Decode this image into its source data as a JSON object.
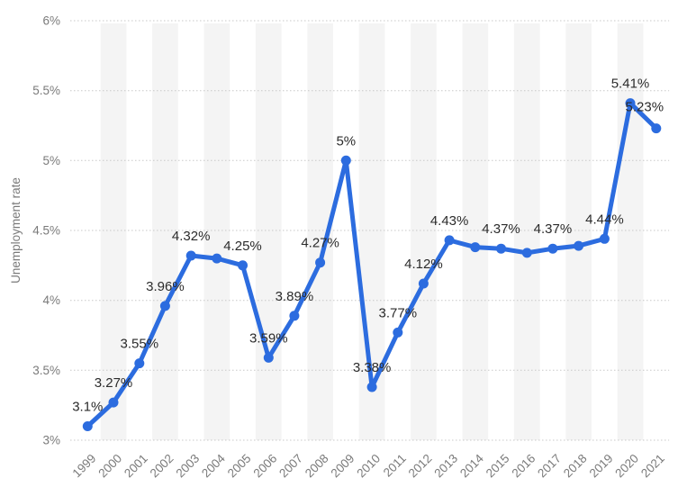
{
  "chart_data": {
    "type": "line",
    "title": "",
    "xlabel": "",
    "ylabel": "Unemployment rate",
    "x": [
      1999,
      2000,
      2001,
      2002,
      2003,
      2004,
      2005,
      2006,
      2007,
      2008,
      2009,
      2010,
      2011,
      2012,
      2013,
      2014,
      2015,
      2016,
      2017,
      2018,
      2019,
      2020,
      2021
    ],
    "series": [
      {
        "name": "Unemployment rate",
        "values": [
          3.1,
          3.27,
          3.55,
          3.96,
          4.32,
          4.3,
          4.25,
          3.59,
          3.89,
          4.27,
          5,
          3.38,
          3.77,
          4.12,
          4.43,
          4.38,
          4.37,
          4.34,
          4.37,
          4.39,
          4.44,
          5.41,
          5.23
        ],
        "point_labels": [
          "3.1%",
          "3.27%",
          "3.55%",
          "3.96%",
          "4.32%",
          null,
          "4.25%",
          "3.59%",
          "3.89%",
          "4.27%",
          "5%",
          "3.38%",
          "3.77%",
          "4.12%",
          "4.43%",
          null,
          "4.37%",
          null,
          "4.37%",
          null,
          "4.44%",
          "5.41%",
          "5.23%"
        ]
      }
    ],
    "label_offsets": {
      "2021": {
        "dx": -13,
        "dy": -2
      }
    },
    "ylim": [
      3,
      6
    ],
    "ytick_labels": [
      "3%",
      "3.5%",
      "4%",
      "4.5%",
      "5%",
      "5.5%",
      "6%"
    ],
    "ytick_values": [
      3,
      3.5,
      4,
      4.5,
      5,
      5.5,
      6
    ],
    "grid": "horizontal-dotted",
    "plot_bands": "alternating-vertical-stripes",
    "legend": "none",
    "colors": {
      "line": "#2c6cdf",
      "marker": "#2c6cdf",
      "data_label_text": "#2b2b2b",
      "axis_text": "#7a7a7a",
      "gridline": "#c8c8c8",
      "stripe": "#f4f4f4",
      "background": "#ffffff"
    }
  }
}
